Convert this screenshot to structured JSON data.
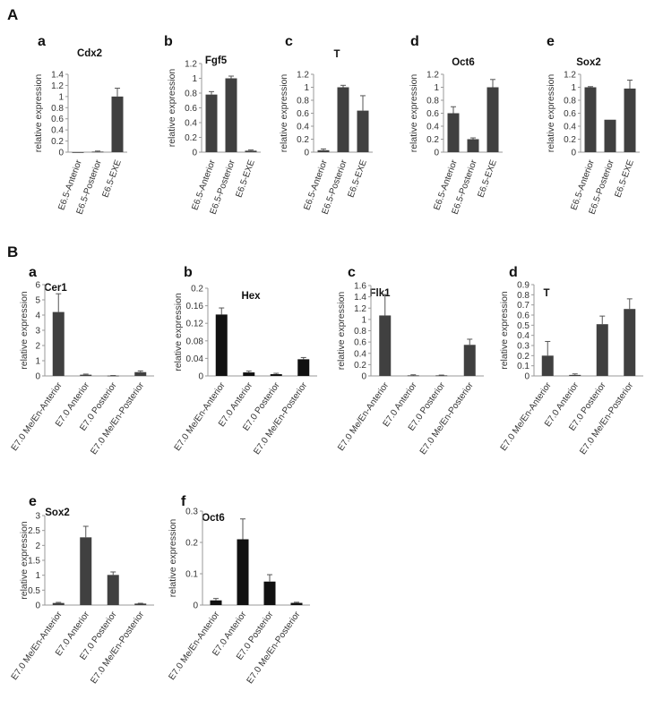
{
  "sections": [
    {
      "label": "A"
    },
    {
      "label": "B"
    }
  ],
  "chart_data": [
    {
      "panel": "a",
      "title": "Cdx2",
      "type": "bar",
      "ylabel": "relative expression",
      "categories": [
        "E6.5-Anterior",
        "E6.5-Posterior",
        "E6.5-EXE"
      ],
      "values": [
        0,
        0.01,
        1.0
      ],
      "errors": [
        0,
        0.01,
        0.15
      ],
      "ylim": [
        0,
        1.4
      ],
      "yticks": [
        "0",
        "0.2",
        "0.4",
        "0.6",
        "0.8",
        "1",
        "1.2",
        "1.4"
      ],
      "color": "#404040"
    },
    {
      "panel": "b",
      "title": "Fgf5",
      "type": "bar",
      "ylabel": "relative expression",
      "categories": [
        "E6.5-Anterior",
        "E6.5-Posterior",
        "E6.5-EXE"
      ],
      "values": [
        0.78,
        1.0,
        0.02
      ],
      "errors": [
        0.04,
        0.03,
        0.01
      ],
      "ylim": [
        0,
        1.2
      ],
      "yticks": [
        "0",
        "0.2",
        "0.4",
        "0.6",
        "0.8",
        "1",
        "1.2"
      ],
      "color": "#404040"
    },
    {
      "panel": "c",
      "title": "T",
      "type": "bar",
      "ylabel": "relative expression",
      "categories": [
        "E6.5-Anterior",
        "E6.5-Posterior",
        "E6.5-EXE"
      ],
      "values": [
        0.03,
        1.0,
        0.64
      ],
      "errors": [
        0.02,
        0.03,
        0.23
      ],
      "ylim": [
        0,
        1.2
      ],
      "yticks": [
        "0",
        "0.2",
        "0.4",
        "0.6",
        "0.8",
        "1",
        "1.2"
      ],
      "color": "#404040"
    },
    {
      "panel": "d",
      "title": "Oct6",
      "type": "bar",
      "ylabel": "relative expression",
      "categories": [
        "E6.5-Anterior",
        "E6.5-Posterior",
        "E6.5-EXE"
      ],
      "values": [
        0.6,
        0.2,
        1.0
      ],
      "errors": [
        0.1,
        0.02,
        0.12
      ],
      "ylim": [
        0,
        1.2
      ],
      "yticks": [
        "0",
        "0.2",
        "0.4",
        "0.6",
        "0.8",
        "1",
        "1.2"
      ],
      "color": "#404040"
    },
    {
      "panel": "e",
      "title": "Sox2",
      "type": "bar",
      "ylabel": "relative expression",
      "categories": [
        "E6.5-Anterior",
        "E6.5-Posterior",
        "E6.5-EXE"
      ],
      "values": [
        1.0,
        0.5,
        0.98
      ],
      "errors": [
        0.01,
        0.0,
        0.13
      ],
      "ylim": [
        0,
        1.2
      ],
      "yticks": [
        "0",
        "0.2",
        "0.4",
        "0.6",
        "0.8",
        "1",
        "1.2"
      ],
      "color": "#404040"
    },
    {
      "panel": "a",
      "title": "Cer1",
      "type": "bar",
      "ylabel": "relative expression",
      "categories": [
        "E7.0 Me/En-Anterior",
        "E7.0 Anterior",
        "E7.0 Posterior",
        "E7.0 Me/En-Posterior"
      ],
      "values": [
        4.2,
        0.08,
        0.02,
        0.25
      ],
      "errors": [
        1.2,
        0.04,
        0.01,
        0.08
      ],
      "ylim": [
        0,
        6
      ],
      "yticks": [
        "0",
        "1",
        "2",
        "3",
        "4",
        "5",
        "6"
      ],
      "color": "#404040"
    },
    {
      "panel": "b",
      "title": "Hex",
      "type": "bar",
      "ylabel": "relative expression",
      "categories": [
        "E7.0 Me/En-Anterior",
        "E7.0 Anterior",
        "E7.0 Posterior",
        "E7.0 Me/En-Posterior"
      ],
      "values": [
        0.14,
        0.008,
        0.004,
        0.038
      ],
      "errors": [
        0.015,
        0.003,
        0.002,
        0.004
      ],
      "ylim": [
        0,
        0.2
      ],
      "yticks": [
        "0",
        "0.04",
        "0.08",
        "0.12",
        "0.16",
        "0.2"
      ],
      "color": "#111111"
    },
    {
      "panel": "c",
      "title": "Flk1",
      "type": "bar",
      "ylabel": "relative expression",
      "categories": [
        "E7.0 Me/En-Anterior",
        "E7.0 Anterior",
        "E7.0 Posterior",
        "E7.0 Me/En-Posterior"
      ],
      "values": [
        1.07,
        0.01,
        0.01,
        0.55
      ],
      "errors": [
        0.37,
        0.01,
        0.005,
        0.1
      ],
      "ylim": [
        0,
        1.6
      ],
      "yticks": [
        "0",
        "0.2",
        "0.4",
        "0.6",
        "0.8",
        "1",
        "1.2",
        "1.4",
        "1.6"
      ],
      "color": "#404040"
    },
    {
      "panel": "d",
      "title": "T",
      "type": "bar",
      "ylabel": "relative expression",
      "categories": [
        "E7.0 Me/En-Anterior",
        "E7.0 Anterior",
        "E7.0 Posterior",
        "E7.0 Me/En-Posterior"
      ],
      "values": [
        0.2,
        0.01,
        0.51,
        0.66
      ],
      "errors": [
        0.14,
        0.01,
        0.08,
        0.1
      ],
      "ylim": [
        0,
        0.9
      ],
      "yticks": [
        "0",
        "0.1",
        "0.2",
        "0.3",
        "0.4",
        "0.5",
        "0.6",
        "0.7",
        "0.8",
        "0.9"
      ],
      "color": "#404040"
    },
    {
      "panel": "e",
      "title": "Sox2",
      "type": "bar",
      "ylabel": "relative expression",
      "categories": [
        "E7.0 Me/En-Anterior",
        "E7.0 Anterior",
        "E7.0 Posterior",
        "E7.0 Me/En-Posterior"
      ],
      "values": [
        0.07,
        2.27,
        1.01,
        0.05
      ],
      "errors": [
        0.02,
        0.37,
        0.1,
        0.01
      ],
      "ylim": [
        0,
        3
      ],
      "yticks": [
        "0",
        "0.5",
        "1",
        "1.5",
        "2",
        "2.5",
        "3"
      ],
      "color": "#404040"
    },
    {
      "panel": "f",
      "title": "Oct6",
      "type": "bar",
      "ylabel": "relative expression",
      "categories": [
        "E7.0 Me/En-Anterior",
        "E7.0 Anterior",
        "E7.0 Posterior",
        "E7.0 Me/En-Posterior"
      ],
      "values": [
        0.015,
        0.21,
        0.075,
        0.007
      ],
      "errors": [
        0.006,
        0.065,
        0.022,
        0.002
      ],
      "ylim": [
        0,
        0.3
      ],
      "yticks": [
        "0",
        "0.1",
        "0.2",
        "0.3"
      ],
      "color": "#111111"
    }
  ]
}
